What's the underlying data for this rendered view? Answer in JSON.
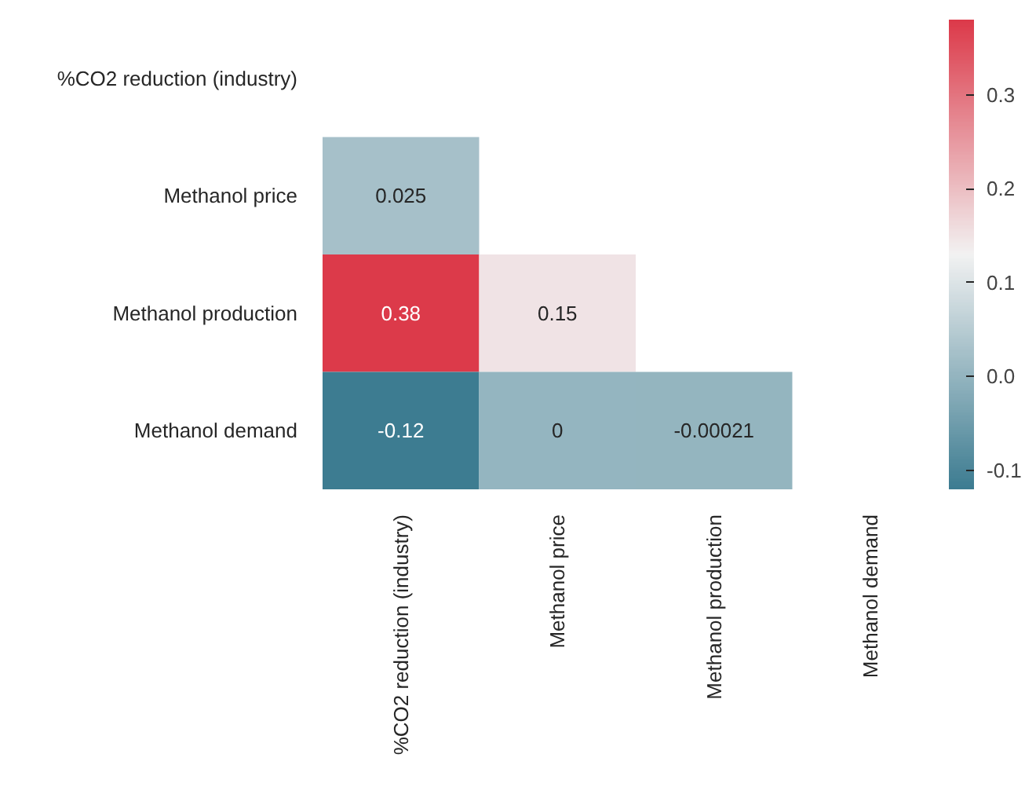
{
  "chart_data": {
    "type": "heatmap",
    "categories": [
      "%CO2 reduction (industry)",
      "Methanol price",
      "Methanol production",
      "Methanol demand"
    ],
    "y_categories": [
      "%CO2 reduction (industry)",
      "Methanol price",
      "Methanol production",
      "Methanol demand"
    ],
    "cells": [
      [
        null,
        null,
        null,
        null
      ],
      [
        0.025,
        null,
        null,
        null
      ],
      [
        0.38,
        0.15,
        null,
        null
      ],
      [
        -0.12,
        0,
        -0.00021,
        null
      ]
    ],
    "data_labels": true,
    "colors": [
      "#3d7c91",
      "#f2f2f2",
      "#dc3a4a"
    ],
    "clim": [
      -0.12,
      0.38
    ],
    "cticks": [
      -0.1,
      {
        "value": 0,
        "label": "0.0"
      },
      0.1,
      0.2,
      0.3
    ]
  }
}
